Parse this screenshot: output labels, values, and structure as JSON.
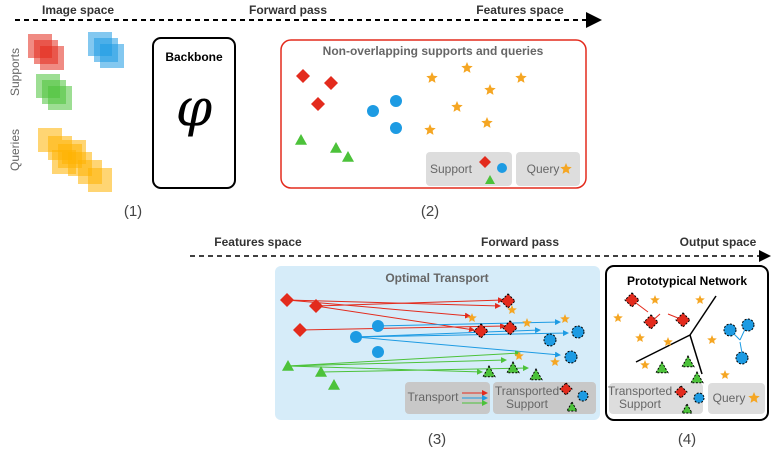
{
  "top": {
    "left": "Image space",
    "middle": "Forward pass",
    "right": "Features space"
  },
  "panel1": {
    "supports_label": "Supports",
    "queries_label": "Queries",
    "caption": "(1)"
  },
  "backbone": {
    "title": "Backbone",
    "symbol": "φ"
  },
  "panel2": {
    "title": "Non-overlapping supports and queries",
    "support_legend": "Support",
    "query_legend": "Query",
    "caption": "(2)"
  },
  "bottom": {
    "left": "Features space",
    "middle": "Forward pass",
    "right": "Output space"
  },
  "panel3": {
    "title": "Optimal Transport",
    "transport_legend": "Transport",
    "transported_legend": [
      "Transported",
      "Support"
    ],
    "caption": "(3)"
  },
  "panel4": {
    "title": "Prototypical Network",
    "transported_legend": [
      "Transported",
      "Support"
    ],
    "query_legend": "Query",
    "caption": "(4)"
  }
}
